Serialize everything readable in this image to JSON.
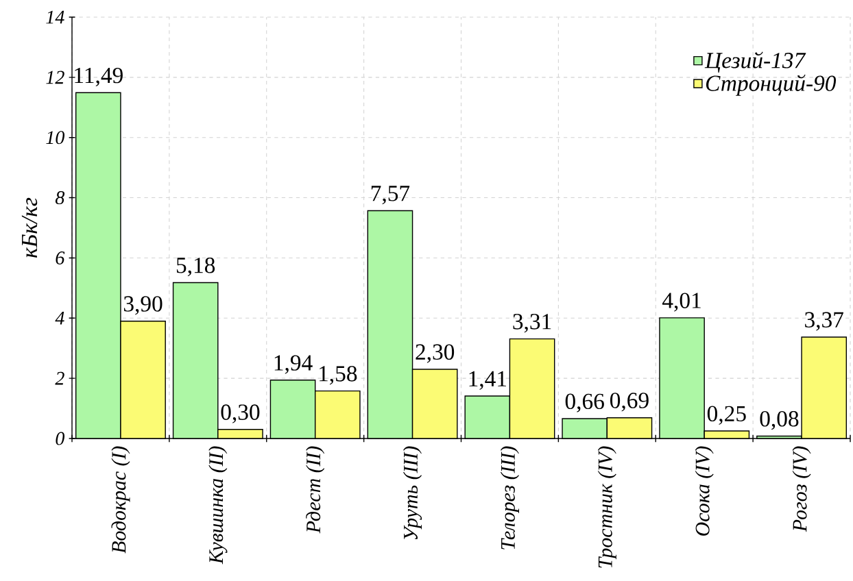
{
  "chart_data": {
    "type": "bar",
    "ylabel": "кБк/кг",
    "categories": [
      "Водокрас (I)",
      "Кувшинка (II)",
      "Рдест (II)",
      "Уруть (III)",
      "Телорез (III)",
      "Тростник (IV)",
      "Осока (IV)",
      "Рогоз (IV)"
    ],
    "series": [
      {
        "name": "Цезий-137",
        "color": "#adf7a5",
        "values": [
          11.49,
          5.18,
          1.94,
          7.57,
          1.41,
          0.66,
          4.01,
          0.08
        ],
        "value_labels": [
          "11,49",
          "5,18",
          "1,94",
          "7,57",
          "1,41",
          "0,66",
          "4,01",
          "0,08"
        ]
      },
      {
        "name": "Стронций-90",
        "color": "#fbfb74",
        "values": [
          3.9,
          0.3,
          1.58,
          2.3,
          3.31,
          0.69,
          0.25,
          3.37
        ],
        "value_labels": [
          "3,90",
          "0,30",
          "1,58",
          "2,30",
          "3,31",
          "0,69",
          "0,25",
          "3,37"
        ]
      }
    ],
    "ylim": [
      0,
      14
    ],
    "yticks": [
      0,
      2,
      4,
      6,
      8,
      10,
      12,
      14
    ],
    "grid": true,
    "legend": "top right"
  }
}
